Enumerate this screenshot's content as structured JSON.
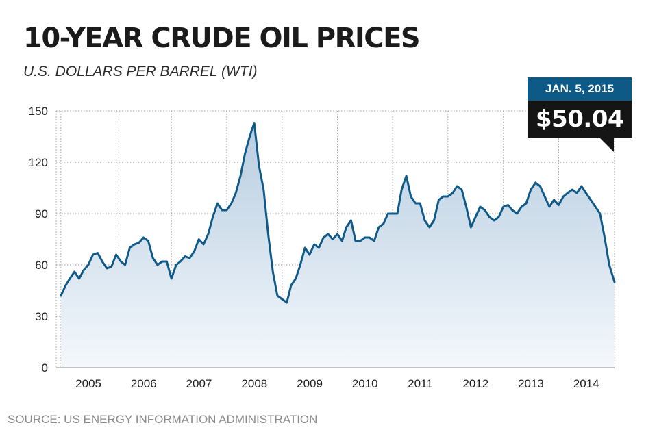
{
  "header": {
    "title": "10-YEAR CRUDE OIL PRICES",
    "subtitle": "U.S. DOLLARS PER BARREL (WTI)"
  },
  "callout": {
    "date": "JAN. 5, 2015",
    "price": "$50.04"
  },
  "footer": {
    "source": "SOURCE: US ENERGY INFORMATION ADMINISTRATION"
  },
  "colors": {
    "line": "#0f5a88",
    "area_top": "#b7cde0",
    "area_bottom": "#f4f8fc",
    "callout_date_bg": "#0e5a87",
    "callout_price_bg": "#151515",
    "grid": "#9a9a9a"
  },
  "chart_data": {
    "type": "area",
    "title": "10-YEAR CRUDE OIL PRICES",
    "subtitle": "U.S. DOLLARS PER BARREL (WTI)",
    "xlabel": "",
    "ylabel": "",
    "ylim": [
      0,
      150
    ],
    "yticks": [
      "0",
      "30",
      "60",
      "90",
      "120",
      "150"
    ],
    "year_labels": [
      "2005",
      "2006",
      "2007",
      "2008",
      "2009",
      "2010",
      "2011",
      "2012",
      "2013",
      "2014"
    ],
    "grid": true,
    "series": [
      {
        "name": "",
        "x": [
          "2005-01",
          "2005-02",
          "2005-03",
          "2005-04",
          "2005-05",
          "2005-06",
          "2005-07",
          "2005-08",
          "2005-09",
          "2005-10",
          "2005-11",
          "2005-12",
          "2006-01",
          "2006-02",
          "2006-03",
          "2006-04",
          "2006-05",
          "2006-06",
          "2006-07",
          "2006-08",
          "2006-09",
          "2006-10",
          "2006-11",
          "2006-12",
          "2007-01",
          "2007-02",
          "2007-03",
          "2007-04",
          "2007-05",
          "2007-06",
          "2007-07",
          "2007-08",
          "2007-09",
          "2007-10",
          "2007-11",
          "2007-12",
          "2008-01",
          "2008-02",
          "2008-03",
          "2008-04",
          "2008-05",
          "2008-06",
          "2008-07",
          "2008-08",
          "2008-09",
          "2008-10",
          "2008-11",
          "2008-12",
          "2009-01",
          "2009-02",
          "2009-03",
          "2009-04",
          "2009-05",
          "2009-06",
          "2009-07",
          "2009-08",
          "2009-09",
          "2009-10",
          "2009-11",
          "2009-12",
          "2010-01",
          "2010-02",
          "2010-03",
          "2010-04",
          "2010-05",
          "2010-06",
          "2010-07",
          "2010-08",
          "2010-09",
          "2010-10",
          "2010-11",
          "2010-12",
          "2011-01",
          "2011-02",
          "2011-03",
          "2011-04",
          "2011-05",
          "2011-06",
          "2011-07",
          "2011-08",
          "2011-09",
          "2011-10",
          "2011-11",
          "2011-12",
          "2012-01",
          "2012-02",
          "2012-03",
          "2012-04",
          "2012-05",
          "2012-06",
          "2012-07",
          "2012-08",
          "2012-09",
          "2012-10",
          "2012-11",
          "2012-12",
          "2013-01",
          "2013-02",
          "2013-03",
          "2013-04",
          "2013-05",
          "2013-06",
          "2013-07",
          "2013-08",
          "2013-09",
          "2013-10",
          "2013-11",
          "2013-12",
          "2014-01",
          "2014-02",
          "2014-03",
          "2014-04",
          "2014-05",
          "2014-06",
          "2014-07",
          "2014-08",
          "2014-09",
          "2014-10",
          "2014-11",
          "2014-12",
          "2015-01-05"
        ],
        "y": [
          42,
          48,
          52,
          56,
          52,
          57,
          60,
          66,
          67,
          62,
          58,
          59,
          66,
          62,
          60,
          70,
          72,
          73,
          76,
          74,
          64,
          60,
          62,
          62,
          52,
          60,
          62,
          65,
          64,
          68,
          75,
          72,
          78,
          88,
          96,
          92,
          92,
          96,
          102,
          112,
          125,
          135,
          143,
          118,
          104,
          78,
          56,
          42,
          40,
          38,
          48,
          52,
          60,
          70,
          66,
          72,
          70,
          76,
          78,
          75,
          78,
          74,
          82,
          86,
          74,
          74,
          76,
          76,
          74,
          82,
          84,
          90,
          90,
          90,
          104,
          112,
          100,
          96,
          96,
          86,
          82,
          86,
          98,
          100,
          100,
          102,
          106,
          104,
          94,
          82,
          88,
          94,
          92,
          88,
          86,
          88,
          94,
          95,
          92,
          90,
          94,
          96,
          104,
          108,
          106,
          100,
          94,
          98,
          95,
          100,
          102,
          104,
          102,
          106,
          102,
          98,
          94,
          90,
          76,
          60,
          50
        ]
      }
    ]
  }
}
